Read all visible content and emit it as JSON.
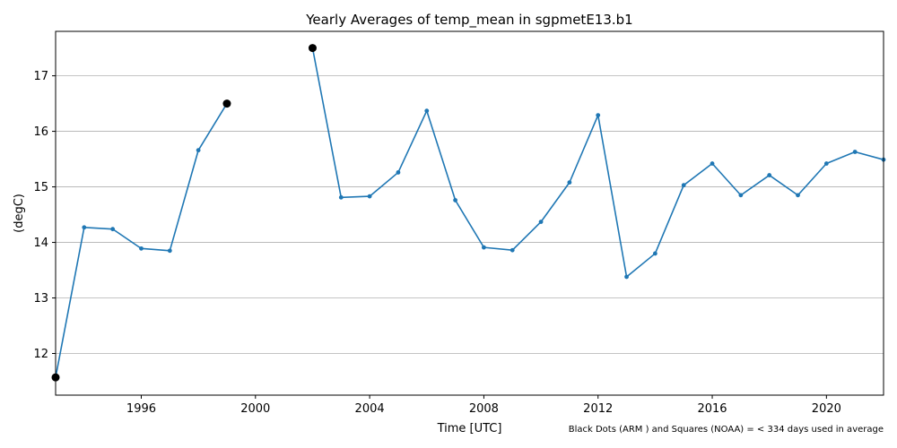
{
  "chart_data": {
    "type": "line",
    "title": "Yearly Averages of temp_mean in sgpmetE13.b1",
    "xlabel": "Time [UTC]",
    "ylabel": "(degC)",
    "note": "Black Dots (ARM ) and Squares (NOAA) = < 334 days used in average",
    "xlim": [
      1993,
      2022
    ],
    "ylim": [
      11.25,
      17.8
    ],
    "x_ticks": [
      1996,
      2000,
      2004,
      2008,
      2012,
      2016,
      2020
    ],
    "y_ticks": [
      12,
      13,
      14,
      15,
      16,
      17
    ],
    "grid": "horizontal",
    "line_color": "#1f77b4",
    "flag_color": "#000000",
    "segments": [
      {
        "x": [
          1993,
          1994,
          1995,
          1996,
          1997,
          1998,
          1999
        ],
        "y": [
          11.57,
          14.27,
          14.24,
          13.89,
          13.85,
          15.66,
          16.5
        ]
      },
      {
        "x": [
          2002,
          2003,
          2004,
          2005,
          2006,
          2007,
          2008,
          2009,
          2010,
          2011,
          2012,
          2013,
          2014,
          2015,
          2016,
          2017,
          2018,
          2019,
          2020,
          2021,
          2022
        ],
        "y": [
          17.5,
          14.81,
          14.83,
          15.26,
          16.37,
          14.76,
          13.91,
          13.86,
          14.37,
          15.08,
          16.29,
          13.38,
          13.8,
          15.03,
          15.42,
          14.85,
          15.21,
          14.85,
          15.42,
          15.63,
          15.49
        ]
      }
    ],
    "flagged_points": [
      {
        "x": 1993,
        "y": 11.57
      },
      {
        "x": 1999,
        "y": 16.5
      },
      {
        "x": 2002,
        "y": 17.5
      }
    ]
  }
}
